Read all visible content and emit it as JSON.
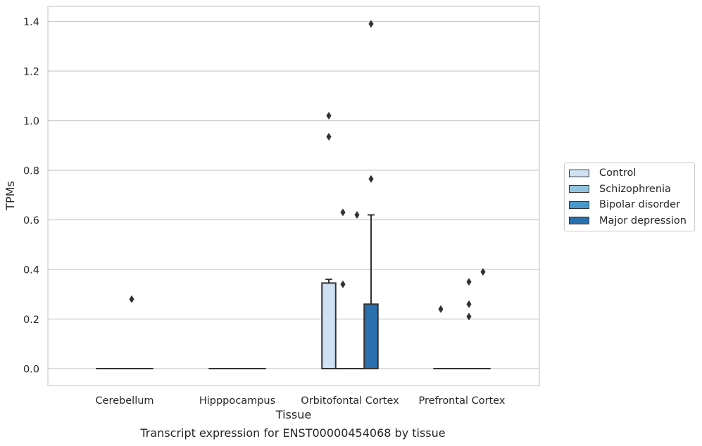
{
  "chart_data": {
    "type": "box",
    "title": "",
    "xlabel": "Tissue",
    "ylabel": "TPMs",
    "caption": "Transcript expression for ENST00000454068 by tissue",
    "categories": [
      "Cerebellum",
      "Hipppocampus",
      "Orbitofontal Cortex",
      "Prefrontal Cortex"
    ],
    "yticks": [
      "0.0",
      "0.2",
      "0.4",
      "0.6",
      "0.8",
      "1.0",
      "1.2",
      "1.4"
    ],
    "ylim": [
      -0.07,
      1.46
    ],
    "grid": true,
    "legend_position": "right",
    "series": [
      {
        "name": "Control",
        "color": "#cfe1f2",
        "boxes": [
          {
            "q1": 0,
            "median": 0,
            "q3": 0,
            "whisker_low": 0,
            "whisker_high": 0,
            "outliers": []
          },
          {
            "q1": 0,
            "median": 0,
            "q3": 0,
            "whisker_low": 0,
            "whisker_high": 0,
            "outliers": []
          },
          {
            "q1": 0,
            "median": 0,
            "q3": 0.345,
            "whisker_low": 0,
            "whisker_high": 0.36,
            "outliers": [
              1.02,
              0.935
            ]
          },
          {
            "q1": 0,
            "median": 0,
            "q3": 0,
            "whisker_low": 0,
            "whisker_high": 0,
            "outliers": [
              0.24
            ]
          }
        ]
      },
      {
        "name": "Schizophrenia",
        "color": "#93c4de",
        "boxes": [
          {
            "q1": 0,
            "median": 0,
            "q3": 0,
            "whisker_low": 0,
            "whisker_high": 0,
            "outliers": []
          },
          {
            "q1": 0,
            "median": 0,
            "q3": 0,
            "whisker_low": 0,
            "whisker_high": 0,
            "outliers": []
          },
          {
            "q1": 0,
            "median": 0,
            "q3": 0,
            "whisker_low": 0,
            "whisker_high": 0,
            "outliers": [
              0.63,
              0.34
            ]
          },
          {
            "q1": 0,
            "median": 0,
            "q3": 0,
            "whisker_low": 0,
            "whisker_high": 0,
            "outliers": []
          }
        ]
      },
      {
        "name": "Bipolar disorder",
        "color": "#4a98c9",
        "boxes": [
          {
            "q1": 0,
            "median": 0,
            "q3": 0,
            "whisker_low": 0,
            "whisker_high": 0,
            "outliers": [
              0.28
            ]
          },
          {
            "q1": 0,
            "median": 0,
            "q3": 0,
            "whisker_low": 0,
            "whisker_high": 0,
            "outliers": []
          },
          {
            "q1": 0,
            "median": 0,
            "q3": 0,
            "whisker_low": 0,
            "whisker_high": 0,
            "outliers": [
              0.62
            ]
          },
          {
            "q1": 0,
            "median": 0,
            "q3": 0,
            "whisker_low": 0,
            "whisker_high": 0,
            "outliers": [
              0.35,
              0.26,
              0.21
            ]
          }
        ]
      },
      {
        "name": "Major depression",
        "color": "#2a6fae",
        "boxes": [
          {
            "q1": 0,
            "median": 0,
            "q3": 0,
            "whisker_low": 0,
            "whisker_high": 0,
            "outliers": []
          },
          {
            "q1": 0,
            "median": 0,
            "q3": 0,
            "whisker_low": 0,
            "whisker_high": 0,
            "outliers": []
          },
          {
            "q1": 0,
            "median": 0,
            "q3": 0.26,
            "whisker_low": 0,
            "whisker_high": 0.62,
            "outliers": [
              1.39,
              0.765
            ]
          },
          {
            "q1": 0,
            "median": 0,
            "q3": 0,
            "whisker_low": 0,
            "whisker_high": 0,
            "outliers": [
              0.39
            ]
          }
        ]
      }
    ]
  }
}
